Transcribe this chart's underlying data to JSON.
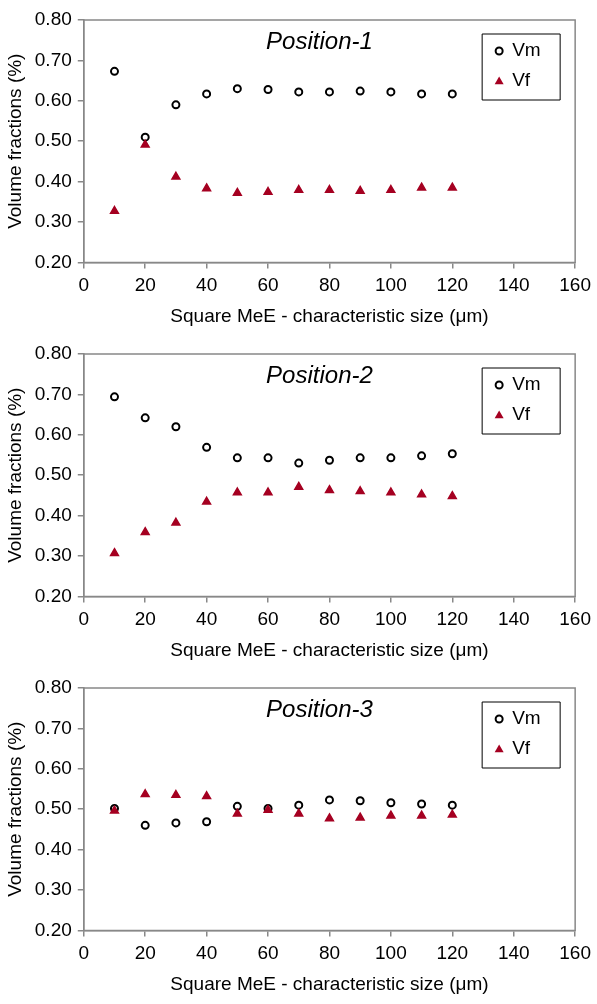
{
  "chart_data": [
    {
      "type": "scatter",
      "title": "Position-1",
      "xlabel": "Square MeE - characteristic size (μm)",
      "ylabel": "Volume fractions (%)",
      "legend": "top right",
      "grid": false,
      "x": [
        10,
        20,
        30,
        40,
        50,
        60,
        70,
        80,
        90,
        100,
        110,
        120
      ],
      "xlim": [
        0,
        160
      ],
      "xticks": [
        0,
        20,
        40,
        60,
        80,
        100,
        120,
        140,
        160
      ],
      "ylim": [
        0.2,
        0.8
      ],
      "yticks": [
        {
          "value": 0.2,
          "label": "0.20"
        },
        {
          "value": 0.3,
          "label": "0.30"
        },
        {
          "value": 0.4,
          "label": "0.40"
        },
        {
          "value": 0.5,
          "label": "0.50"
        },
        {
          "value": 0.6,
          "label": "0.60"
        },
        {
          "value": 0.7,
          "label": "0.70"
        },
        {
          "value": 0.8,
          "label": "0.80"
        }
      ],
      "series": [
        {
          "name": "Vm",
          "color": "#000000",
          "marker": "circle",
          "values": [
            0.673,
            0.51,
            0.59,
            0.617,
            0.63,
            0.628,
            0.622,
            0.622,
            0.624,
            0.622,
            0.617,
            0.617
          ]
        },
        {
          "name": "Vf",
          "color": "#a50021",
          "marker": "triangle",
          "values": [
            0.327,
            0.491,
            0.412,
            0.383,
            0.372,
            0.374,
            0.379,
            0.379,
            0.377,
            0.379,
            0.385,
            0.385
          ]
        }
      ]
    },
    {
      "type": "scatter",
      "title": "Position-2",
      "xlabel": "Square MeE - characteristic size (μm)",
      "ylabel": "Volume fractions (%)",
      "legend": "top right",
      "grid": false,
      "x": [
        10,
        20,
        30,
        40,
        50,
        60,
        70,
        80,
        90,
        100,
        110,
        120
      ],
      "xlim": [
        0,
        160
      ],
      "xticks": [
        0,
        20,
        40,
        60,
        80,
        100,
        120,
        140,
        160
      ],
      "ylim": [
        0.2,
        0.8
      ],
      "yticks": [
        {
          "value": 0.2,
          "label": "0.20"
        },
        {
          "value": 0.3,
          "label": "0.30"
        },
        {
          "value": 0.4,
          "label": "0.40"
        },
        {
          "value": 0.5,
          "label": "0.50"
        },
        {
          "value": 0.6,
          "label": "0.60"
        },
        {
          "value": 0.7,
          "label": "0.70"
        },
        {
          "value": 0.8,
          "label": "0.80"
        }
      ],
      "series": [
        {
          "name": "Vm",
          "color": "#000000",
          "marker": "circle",
          "values": [
            0.694,
            0.642,
            0.62,
            0.569,
            0.543,
            0.543,
            0.53,
            0.537,
            0.543,
            0.543,
            0.548,
            0.553
          ]
        },
        {
          "name": "Vf",
          "color": "#a50021",
          "marker": "triangle",
          "values": [
            0.307,
            0.359,
            0.382,
            0.434,
            0.457,
            0.457,
            0.471,
            0.463,
            0.46,
            0.457,
            0.452,
            0.448
          ]
        }
      ]
    },
    {
      "type": "scatter",
      "title": "Position-3",
      "xlabel": "Square MeE - characteristic size (μm)",
      "ylabel": "Volume fractions (%)",
      "legend": "top right",
      "grid": false,
      "x": [
        10,
        20,
        30,
        40,
        50,
        60,
        70,
        80,
        90,
        100,
        110,
        120
      ],
      "xlim": [
        0,
        160
      ],
      "xticks": [
        0,
        20,
        40,
        60,
        80,
        100,
        120,
        140,
        160
      ],
      "ylim": [
        0.2,
        0.8
      ],
      "yticks": [
        {
          "value": 0.2,
          "label": "0.20"
        },
        {
          "value": 0.3,
          "label": "0.30"
        },
        {
          "value": 0.4,
          "label": "0.40"
        },
        {
          "value": 0.5,
          "label": "0.50"
        },
        {
          "value": 0.6,
          "label": "0.60"
        },
        {
          "value": 0.7,
          "label": "0.70"
        },
        {
          "value": 0.8,
          "label": "0.80"
        }
      ],
      "series": [
        {
          "name": "Vm",
          "color": "#000000",
          "marker": "circle",
          "values": [
            0.502,
            0.46,
            0.466,
            0.469,
            0.507,
            0.502,
            0.51,
            0.523,
            0.521,
            0.516,
            0.513,
            0.51
          ]
        },
        {
          "name": "Vf",
          "color": "#a50021",
          "marker": "triangle",
          "values": [
            0.496,
            0.537,
            0.535,
            0.532,
            0.489,
            0.498,
            0.489,
            0.477,
            0.479,
            0.484,
            0.484,
            0.486
          ]
        }
      ]
    }
  ]
}
